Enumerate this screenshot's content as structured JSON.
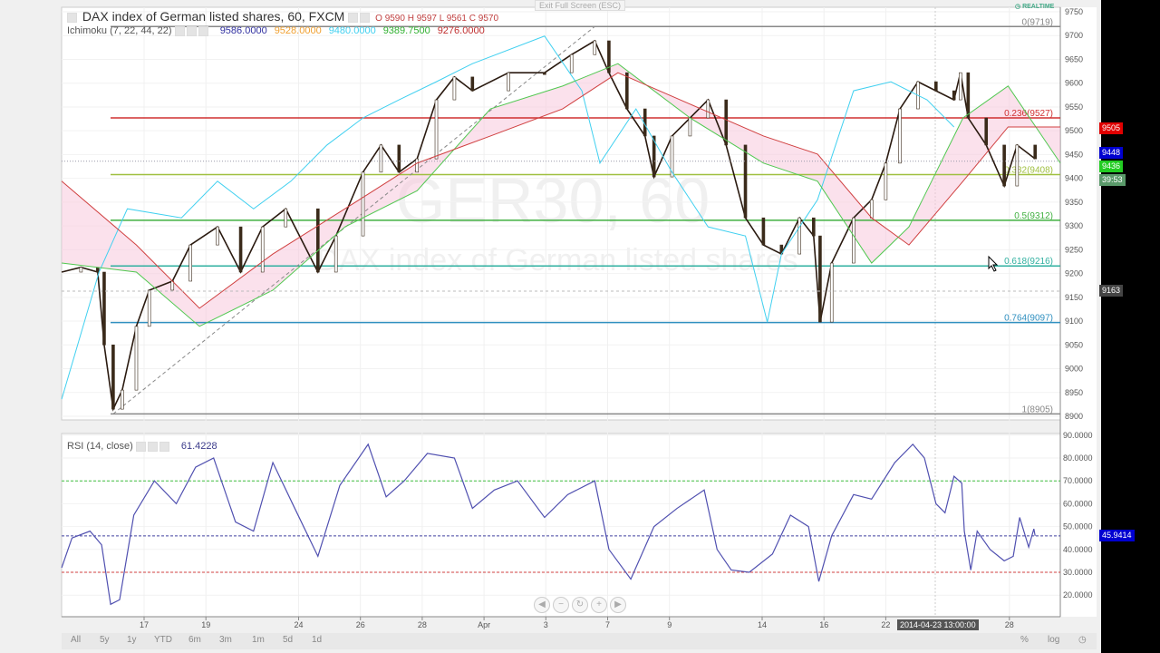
{
  "header": {
    "symbol_title": "DAX index of German listed shares, 60, FXCM",
    "ohlc": {
      "o_label": "O",
      "o": "9590",
      "h_label": "H",
      "h": "9597",
      "l_label": "L",
      "l": "9561",
      "c_label": "C",
      "c": "9570"
    },
    "exit_fullscreen": "Exit Full Screen (ESC)",
    "realtime": "REALTIME"
  },
  "ichimoku": {
    "label": "Ichimoku (7, 22, 44, 22)",
    "values": [
      {
        "v": "9586.0000",
        "color": "#3030a0"
      },
      {
        "v": "9528.0000",
        "color": "#f0a030"
      },
      {
        "v": "9480.0000",
        "color": "#40d0f0"
      },
      {
        "v": "9389.7500",
        "color": "#30b030"
      },
      {
        "v": "9276.0000",
        "color": "#c03030"
      }
    ]
  },
  "rsi": {
    "label": "RSI (14, close)",
    "value": "61.4228",
    "current_label": "45.9414"
  },
  "watermark": {
    "line1": "GER30, 60",
    "line2": "DAX index of German listed shares"
  },
  "price_labels": [
    {
      "text": "9505",
      "color": "#e00000",
      "price": 9505
    },
    {
      "text": "9448",
      "color": "#0000d0",
      "price": 9452
    },
    {
      "text": "9436",
      "color": "#22cc22",
      "price": 9436
    },
    {
      "text": "39:53",
      "color": "#5a9a6a",
      "price": 9416
    },
    {
      "text": "9163",
      "color": "#444444",
      "price": 9163
    }
  ],
  "crosshair_time": "2014-04-23 13:00:00",
  "range_buttons": [
    "All",
    "5y",
    "1y",
    "YTD",
    "6m",
    "3m",
    "1m",
    "5d",
    "1d"
  ],
  "scale_buttons": [
    "%",
    "log"
  ],
  "nav_buttons": [
    "scroll-left",
    "zoom-out",
    "reset",
    "zoom-in",
    "scroll-right"
  ],
  "chart_data": [
    {
      "type": "line",
      "pane": "price",
      "ylim": [
        8885,
        9770
      ],
      "yticks": [
        9750,
        9700,
        9650,
        9600,
        9550,
        9500,
        9450,
        9400,
        9350,
        9300,
        9250,
        9200,
        9150,
        9100,
        9050,
        9000,
        8950,
        8900
      ],
      "xticks": [
        {
          "label": "17",
          "date": "2014-03-17 00"
        },
        {
          "label": "19",
          "date": "2014-03-19 00"
        },
        {
          "label": "24",
          "date": "2014-03-24 00"
        },
        {
          "label": "26",
          "date": "2014-03-26 00"
        },
        {
          "label": "28",
          "date": "2014-03-28 00"
        },
        {
          "label": "Apr",
          "date": "2014-04-01 00"
        },
        {
          "label": "3",
          "date": "2014-04-03 00"
        },
        {
          "label": "7",
          "date": "2014-04-07 00"
        },
        {
          "label": "9",
          "date": "2014-04-09 00"
        },
        {
          "label": "14",
          "date": "2014-04-14 00"
        },
        {
          "label": "16",
          "date": "2014-04-16 00"
        },
        {
          "label": "22",
          "date": "2014-04-22 00"
        },
        {
          "label": "28",
          "date": "2014-04-28 00"
        }
      ],
      "fib_levels": [
        {
          "label": "0(9719)",
          "price": 9719,
          "color": "#888888"
        },
        {
          "label": "0.236(9527)",
          "price": 9527,
          "color": "#d03030"
        },
        {
          "label": "0.382(9408)",
          "price": 9408,
          "color": "#a0c040"
        },
        {
          "label": "0.5(9312)",
          "price": 9312,
          "color": "#40b040"
        },
        {
          "label": "0.618(9216)",
          "price": 9216,
          "color": "#30b0a0"
        },
        {
          "label": "0.764(9097)",
          "price": 9097,
          "color": "#3090c0"
        },
        {
          "label": "1(8905)",
          "price": 8905,
          "color": "#888888"
        }
      ],
      "trendline": [
        [
          "2014-03-14 00",
          8905
        ],
        [
          "2014-04-04 14",
          9719
        ]
      ],
      "series": [
        {
          "role": "price",
          "color": "#2a1a10",
          "points": [
            [
              "2014-03-12 08",
              9203
            ],
            [
              "2014-03-12 23",
              9213
            ],
            [
              "2014-03-13 12",
              9203
            ],
            [
              "2014-03-13 17",
              9050
            ],
            [
              "2014-03-14 00",
              8915
            ],
            [
              "2014-03-14 07",
              8955
            ],
            [
              "2014-03-14 18",
              9089
            ],
            [
              "2014-03-17 04",
              9165
            ],
            [
              "2014-03-17 22",
              9184
            ],
            [
              "2014-03-18 12",
              9260
            ],
            [
              "2014-03-19 09",
              9298
            ],
            [
              "2014-03-20 03",
              9203
            ],
            [
              "2014-03-20 20",
              9298
            ],
            [
              "2014-03-21 14",
              9336
            ],
            [
              "2014-03-24 15",
              9203
            ],
            [
              "2014-03-25 05",
              9279
            ],
            [
              "2014-03-26 02",
              9413
            ],
            [
              "2014-03-26 16",
              9470
            ],
            [
              "2014-03-27 06",
              9413
            ],
            [
              "2014-03-27 20",
              9441
            ],
            [
              "2014-03-28 11",
              9565
            ],
            [
              "2014-03-31 01",
              9613
            ],
            [
              "2014-03-31 15",
              9584
            ],
            [
              "2014-04-01 19",
              9622
            ],
            [
              "2014-04-02 23",
              9622
            ],
            [
              "2014-04-03 20",
              9660
            ],
            [
              "2014-04-04 14",
              9689
            ],
            [
              "2014-04-07 01",
              9622
            ],
            [
              "2014-04-07 15",
              9546
            ],
            [
              "2014-04-08 05",
              9489
            ],
            [
              "2014-04-08 12",
              9403
            ],
            [
              "2014-04-09 02",
              9489
            ],
            [
              "2014-04-09 16",
              9527
            ],
            [
              "2014-04-10 06",
              9565
            ],
            [
              "2014-04-10 20",
              9470
            ],
            [
              "2014-04-11 11",
              9317
            ],
            [
              "2014-04-14 01",
              9260
            ],
            [
              "2014-04-14 15",
              9241
            ],
            [
              "2014-04-15 05",
              9317
            ],
            [
              "2014-04-15 16",
              9279
            ],
            [
              "2014-04-15 21",
              9098
            ],
            [
              "2014-04-16 06",
              9222
            ],
            [
              "2014-04-16 23",
              9317
            ],
            [
              "2014-04-17 13",
              9355
            ],
            [
              "2014-04-22 00",
              9432
            ],
            [
              "2014-04-22 11",
              9546
            ],
            [
              "2014-04-23 01",
              9603
            ],
            [
              "2014-04-23 15",
              9584
            ],
            [
              "2014-04-24 05",
              9565
            ],
            [
              "2014-04-24 10",
              9622
            ],
            [
              "2014-04-24 16",
              9527
            ],
            [
              "2014-04-25 06",
              9470
            ],
            [
              "2014-04-25 20",
              9384
            ],
            [
              "2014-04-28 06",
              9470
            ],
            [
              "2014-04-28 20",
              9441
            ]
          ]
        },
        {
          "role": "chikou",
          "color": "#40d0f0",
          "points": [
            [
              "2014-03-12 08",
              8936
            ],
            [
              "2014-03-13 13",
              9203
            ],
            [
              "2014-03-14 11",
              9336
            ],
            [
              "2014-03-18 05",
              9317
            ],
            [
              "2014-03-19 09",
              9394
            ],
            [
              "2014-03-20 13",
              9336
            ],
            [
              "2014-03-21 18",
              9394
            ],
            [
              "2014-03-24 22",
              9470
            ],
            [
              "2014-03-26 02",
              9527
            ],
            [
              "2014-03-27 06",
              9565
            ],
            [
              "2014-03-28 11",
              9603
            ],
            [
              "2014-03-31 15",
              9641
            ],
            [
              "2014-04-02 23",
              9699
            ],
            [
              "2014-04-04 04",
              9584
            ],
            [
              "2014-04-04 18",
              9432
            ],
            [
              "2014-04-07 22",
              9546
            ],
            [
              "2014-04-09 02",
              9413
            ],
            [
              "2014-04-10 06",
              9298
            ],
            [
              "2014-04-11 11",
              9279
            ],
            [
              "2014-04-14 04",
              9098
            ],
            [
              "2014-04-14 15",
              9241
            ],
            [
              "2014-04-15 19",
              9355
            ],
            [
              "2014-04-16 23",
              9584
            ],
            [
              "2014-04-22 04",
              9603
            ],
            [
              "2014-04-23 08",
              9565
            ],
            [
              "2014-04-24 05",
              9508
            ]
          ]
        },
        {
          "role": "senkou_a",
          "color": "#50c850",
          "points": [
            [
              "2014-03-12 08",
              9222
            ],
            [
              "2014-03-14 18",
              9203
            ],
            [
              "2014-03-18 19",
              9089
            ],
            [
              "2014-03-21 04",
              9165
            ],
            [
              "2014-03-25 12",
              9298
            ],
            [
              "2014-03-27 20",
              9374
            ],
            [
              "2014-04-01 05",
              9546
            ],
            [
              "2014-04-03 13",
              9594
            ],
            [
              "2014-04-07 08",
              9641
            ],
            [
              "2014-04-09 16",
              9527
            ],
            [
              "2014-04-14 01",
              9432
            ],
            [
              "2014-04-15 19",
              9394
            ],
            [
              "2014-04-17 13",
              9222
            ],
            [
              "2014-04-22 18",
              9298
            ],
            [
              "2014-04-24 12",
              9527
            ],
            [
              "2014-04-25 23",
              9594
            ],
            [
              "2014-04-29 18",
              9432
            ]
          ]
        },
        {
          "role": "senkou_b",
          "color": "#d04040",
          "points": [
            [
              "2014-03-12 08",
              9394
            ],
            [
              "2014-03-14 18",
              9260
            ],
            [
              "2014-03-18 19",
              9127
            ],
            [
              "2014-03-21 04",
              9241
            ],
            [
              "2014-03-25 12",
              9336
            ],
            [
              "2014-03-27 20",
              9432
            ],
            [
              "2014-04-01 05",
              9489
            ],
            [
              "2014-04-03 13",
              9546
            ],
            [
              "2014-04-07 08",
              9622
            ],
            [
              "2014-04-09 16",
              9556
            ],
            [
              "2014-04-14 01",
              9489
            ],
            [
              "2014-04-15 19",
              9451
            ],
            [
              "2014-04-17 13",
              9317
            ],
            [
              "2014-04-22 18",
              9260
            ],
            [
              "2014-04-24 12",
              9394
            ],
            [
              "2014-04-25 23",
              9508
            ],
            [
              "2014-04-29 18",
              9508
            ]
          ]
        }
      ],
      "cloud_color": "#f8c8dc"
    },
    {
      "type": "line",
      "pane": "rsi",
      "ylim": [
        10,
        90
      ],
      "yticks": [
        90,
        80,
        70,
        60,
        50,
        40,
        30,
        20
      ],
      "bands": [
        {
          "value": 70,
          "color": "#40c040"
        },
        {
          "value": 30,
          "color": "#d04040"
        },
        {
          "value": 45.9414,
          "color": "#4040a0"
        }
      ],
      "series": [
        {
          "name": "RSI",
          "color": "#5050b0",
          "points": [
            [
              "2014-03-12 08",
              32
            ],
            [
              "2014-03-12 16",
              45
            ],
            [
              "2014-03-13 06",
              48
            ],
            [
              "2014-03-13 15",
              42
            ],
            [
              "2014-03-13 22",
              16
            ],
            [
              "2014-03-14 05",
              18
            ],
            [
              "2014-03-14 16",
              55
            ],
            [
              "2014-03-17 08",
              70
            ],
            [
              "2014-03-18 01",
              60
            ],
            [
              "2014-03-18 16",
              76
            ],
            [
              "2014-03-19 06",
              80
            ],
            [
              "2014-03-19 23",
              52
            ],
            [
              "2014-03-20 13",
              48
            ],
            [
              "2014-03-21 04",
              78
            ],
            [
              "2014-03-21 21",
              58
            ],
            [
              "2014-03-24 15",
              37
            ],
            [
              "2014-03-25 08",
              68
            ],
            [
              "2014-03-26 06",
              86
            ],
            [
              "2014-03-26 20",
              63
            ],
            [
              "2014-03-27 10",
              70
            ],
            [
              "2014-03-28 04",
              82
            ],
            [
              "2014-03-31 01",
              80
            ],
            [
              "2014-03-31 15",
              58
            ],
            [
              "2014-04-01 08",
              66
            ],
            [
              "2014-04-02 02",
              70
            ],
            [
              "2014-04-02 23",
              54
            ],
            [
              "2014-04-03 17",
              64
            ],
            [
              "2014-04-04 14",
              70
            ],
            [
              "2014-04-07 01",
              40
            ],
            [
              "2014-04-07 18",
              27
            ],
            [
              "2014-04-08 12",
              50
            ],
            [
              "2014-04-09 06",
              58
            ],
            [
              "2014-04-10 03",
              66
            ],
            [
              "2014-04-10 13",
              40
            ],
            [
              "2014-04-11 00",
              31
            ],
            [
              "2014-04-11 14",
              30
            ],
            [
              "2014-04-14 08",
              38
            ],
            [
              "2014-04-14 22",
              55
            ],
            [
              "2014-04-15 12",
              50
            ],
            [
              "2014-04-15 20",
              26
            ],
            [
              "2014-04-16 06",
              46
            ],
            [
              "2014-04-16 23",
              64
            ],
            [
              "2014-04-17 13",
              62
            ],
            [
              "2014-04-22 07",
              78
            ],
            [
              "2014-04-22 21",
              86
            ],
            [
              "2014-04-23 06",
              80
            ],
            [
              "2014-04-23 15",
              60
            ],
            [
              "2014-04-23 22",
              56
            ],
            [
              "2014-04-24 05",
              72
            ],
            [
              "2014-04-24 11",
              69
            ],
            [
              "2014-04-24 13",
              48
            ],
            [
              "2014-04-24 18",
              31
            ],
            [
              "2014-04-24 23",
              48
            ],
            [
              "2014-04-25 09",
              40
            ],
            [
              "2014-04-25 20",
              35
            ],
            [
              "2014-04-28 03",
              37
            ],
            [
              "2014-04-28 08",
              54
            ],
            [
              "2014-04-28 15",
              41
            ],
            [
              "2014-04-28 19",
              49
            ],
            [
              "2014-04-28 20",
              45.9414
            ]
          ]
        }
      ]
    }
  ]
}
